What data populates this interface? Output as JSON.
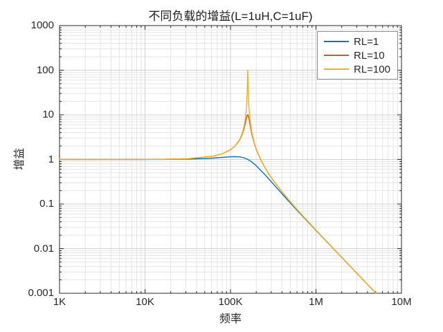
{
  "figure": {
    "background": "#ffffff",
    "frame_color": "#262626",
    "major_grid_color": "#d0d0d0",
    "minor_grid_color": "#e4e4e4"
  },
  "chart_data": {
    "type": "line",
    "title": "不同负载的增益(L=1uH,C=1uF)",
    "xlabel": "频率",
    "ylabel": "增益",
    "x_scale": "log",
    "y_scale": "log",
    "xlim": [
      1000,
      10000000
    ],
    "ylim": [
      0.001,
      1000
    ],
    "grid": "major+minor",
    "legend_position": "top-right",
    "x_ticks": [
      {
        "value": 1000,
        "label": "1K"
      },
      {
        "value": 10000,
        "label": "10K"
      },
      {
        "value": 100000,
        "label": "100K"
      },
      {
        "value": 1000000,
        "label": "1M"
      },
      {
        "value": 10000000,
        "label": "10M"
      }
    ],
    "y_ticks": [
      {
        "value": 1000,
        "label": "1000"
      },
      {
        "value": 100,
        "label": "100"
      },
      {
        "value": 10,
        "label": "10"
      },
      {
        "value": 1,
        "label": "1"
      },
      {
        "value": 0.1,
        "label": "0.1"
      },
      {
        "value": 0.01,
        "label": "0.01"
      },
      {
        "value": 0.001,
        "label": "0.001"
      }
    ],
    "series": [
      {
        "name": "RL=1",
        "color": "#0072BD",
        "points": [
          [
            1000,
            1.0
          ],
          [
            2000,
            1.0001
          ],
          [
            4000,
            1.0003
          ],
          [
            8000,
            1.0013
          ],
          [
            16000,
            1.005
          ],
          [
            20000,
            1.0079
          ],
          [
            31623,
            1.0195
          ],
          [
            40000,
            1.031
          ],
          [
            50119,
            1.0479
          ],
          [
            63096,
            1.0737
          ],
          [
            79433,
            1.1091
          ],
          [
            100000,
            1.1462
          ],
          [
            112202,
            1.1547
          ],
          [
            125893,
            1.1427
          ],
          [
            131826,
            1.129
          ],
          [
            141254,
            1.0958
          ],
          [
            150000,
            1.0537
          ],
          [
            159155,
            1.0
          ],
          [
            168000,
            0.9418
          ],
          [
            178000,
            0.8724
          ],
          [
            200000,
            0.7227
          ],
          [
            251189,
            0.4606
          ],
          [
            316228,
            0.2813
          ],
          [
            398107,
            0.1718
          ],
          [
            501187,
            0.1058
          ],
          [
            630957,
            0.0656
          ],
          [
            794328,
            0.0409
          ],
          [
            1000000,
            0.02565
          ],
          [
            1584893,
            0.01014
          ],
          [
            2511886,
            0.004023
          ],
          [
            3981072,
            0.0016
          ],
          [
            5033000,
            0.001
          ]
        ]
      },
      {
        "name": "RL=10",
        "color": "#D95319",
        "points": [
          [
            1000,
            1.0
          ],
          [
            4000,
            1.0006
          ],
          [
            8000,
            1.0025
          ],
          [
            16000,
            1.0102
          ],
          [
            31623,
            1.0409
          ],
          [
            63096,
            1.1852
          ],
          [
            79433,
            1.3289
          ],
          [
            100000,
            1.6434
          ],
          [
            112202,
            1.969
          ],
          [
            125893,
            2.6138
          ],
          [
            134896,
            3.4005
          ],
          [
            141254,
            4.3462
          ],
          [
            145000,
            5.1856
          ],
          [
            150000,
            6.841
          ],
          [
            152500,
            7.9341
          ],
          [
            155000,
            9.0756
          ],
          [
            157500,
            9.891
          ],
          [
            158000,
            9.9681
          ],
          [
            159155,
            10.0
          ],
          [
            160000,
            9.8917
          ],
          [
            161000,
            9.6325
          ],
          [
            163000,
            8.8119
          ],
          [
            165000,
            7.8221
          ],
          [
            168000,
            6.4294
          ],
          [
            172000,
            5.0076
          ],
          [
            178000,
            3.6411
          ],
          [
            190000,
            2.2644
          ],
          [
            200000,
            1.6875
          ],
          [
            224000,
            1.0092
          ],
          [
            251189,
            0.667
          ],
          [
            282000,
            0.4658
          ],
          [
            316228,
            0.3385
          ],
          [
            398107,
            0.19
          ],
          [
            501187,
            0.1121
          ],
          [
            630957,
            0.06792
          ],
          [
            794328,
            0.04182
          ],
          [
            1000000,
            0.02599
          ],
          [
            1584893,
            0.01019
          ],
          [
            2511886,
            0.004031
          ],
          [
            3981072,
            0.001601
          ],
          [
            5033000,
            0.001
          ]
        ]
      },
      {
        "name": "RL=100",
        "color": "#EDB120",
        "points": [
          [
            1000,
            1.0
          ],
          [
            4000,
            1.0006
          ],
          [
            8000,
            1.0025
          ],
          [
            16000,
            1.0102
          ],
          [
            31623,
            1.041
          ],
          [
            63096,
            1.1865
          ],
          [
            79433,
            1.3318
          ],
          [
            100000,
            1.6522
          ],
          [
            112202,
            1.988
          ],
          [
            125893,
            2.6711
          ],
          [
            134896,
            3.5495
          ],
          [
            141254,
            4.7067
          ],
          [
            145000,
            5.875
          ],
          [
            150000,
            8.9182
          ],
          [
            152500,
            12.13
          ],
          [
            155000,
            19.068
          ],
          [
            156000,
            24.716
          ],
          [
            157500,
            43.61
          ],
          [
            158000,
            57.01
          ],
          [
            158800,
            91.5
          ],
          [
            159155,
            100.0
          ],
          [
            159500,
            91.6
          ],
          [
            160000,
            68.29
          ],
          [
            161000,
            39.34
          ],
          [
            162000,
            26.68
          ],
          [
            163000,
            20.014
          ],
          [
            165000,
            13.243
          ],
          [
            168000,
            8.7172
          ],
          [
            172000,
            5.9429
          ],
          [
            178000,
            3.9826
          ],
          [
            190000,
            2.3511
          ],
          [
            200000,
            1.7263
          ],
          [
            224000,
            1.0194
          ],
          [
            251189,
            0.6707
          ],
          [
            282000,
            0.4674
          ],
          [
            316228,
            0.3392
          ],
          [
            398107,
            0.1902
          ],
          [
            501187,
            0.1122
          ],
          [
            630957,
            0.06794
          ],
          [
            794328,
            0.04183
          ],
          [
            1000000,
            0.02599
          ],
          [
            1584893,
            0.01019
          ],
          [
            2511886,
            0.004031
          ],
          [
            3981072,
            0.001601
          ],
          [
            5033000,
            0.001
          ]
        ]
      }
    ]
  }
}
